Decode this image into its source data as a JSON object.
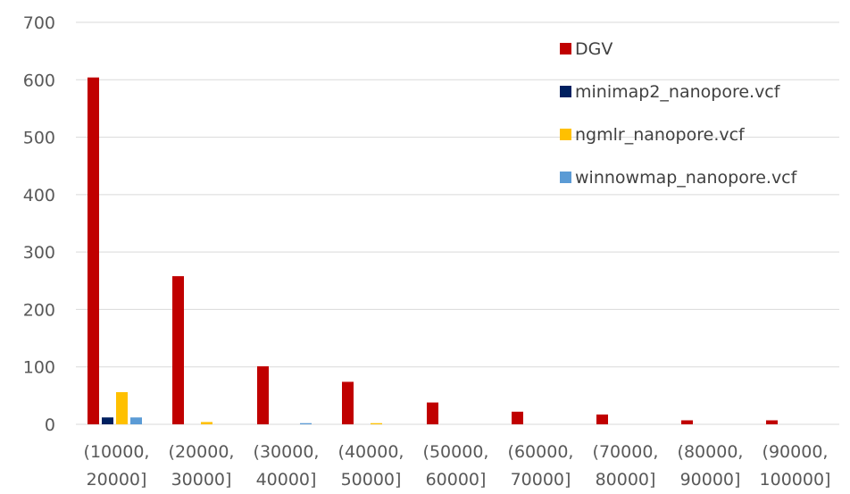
{
  "chart_data": {
    "type": "bar",
    "title": "",
    "xlabel": "",
    "ylabel": "",
    "ylim": [
      0,
      700
    ],
    "yticks": [
      0,
      100,
      200,
      300,
      400,
      500,
      600,
      700
    ],
    "grid": true,
    "legend_position": "top-right",
    "categories": [
      [
        "(10000,",
        "20000]"
      ],
      [
        "(20000,",
        "30000]"
      ],
      [
        "(30000,",
        "40000]"
      ],
      [
        "(40000,",
        "50000]"
      ],
      [
        "(50000,",
        "60000]"
      ],
      [
        "(60000,",
        "70000]"
      ],
      [
        "(70000,",
        "80000]"
      ],
      [
        "(80000,",
        "90000]"
      ],
      [
        "(90000,",
        "100000]"
      ]
    ],
    "series": [
      {
        "name": "DGV",
        "color": "#c00000",
        "values": [
          604,
          258,
          101,
          74,
          38,
          22,
          17,
          7,
          7
        ]
      },
      {
        "name": "minimap2_nanopore.vcf",
        "color": "#002060",
        "values": [
          12,
          0,
          0,
          0,
          0,
          0,
          0,
          0,
          0
        ]
      },
      {
        "name": "ngmlr_nanopore.vcf",
        "color": "#ffc000",
        "values": [
          56,
          4,
          0,
          2,
          0,
          0,
          0,
          0,
          0
        ]
      },
      {
        "name": "winnowmap_nanopore.vcf",
        "color": "#5b9bd5",
        "values": [
          12,
          0,
          2,
          0,
          0,
          0,
          0,
          0,
          0
        ]
      }
    ]
  }
}
